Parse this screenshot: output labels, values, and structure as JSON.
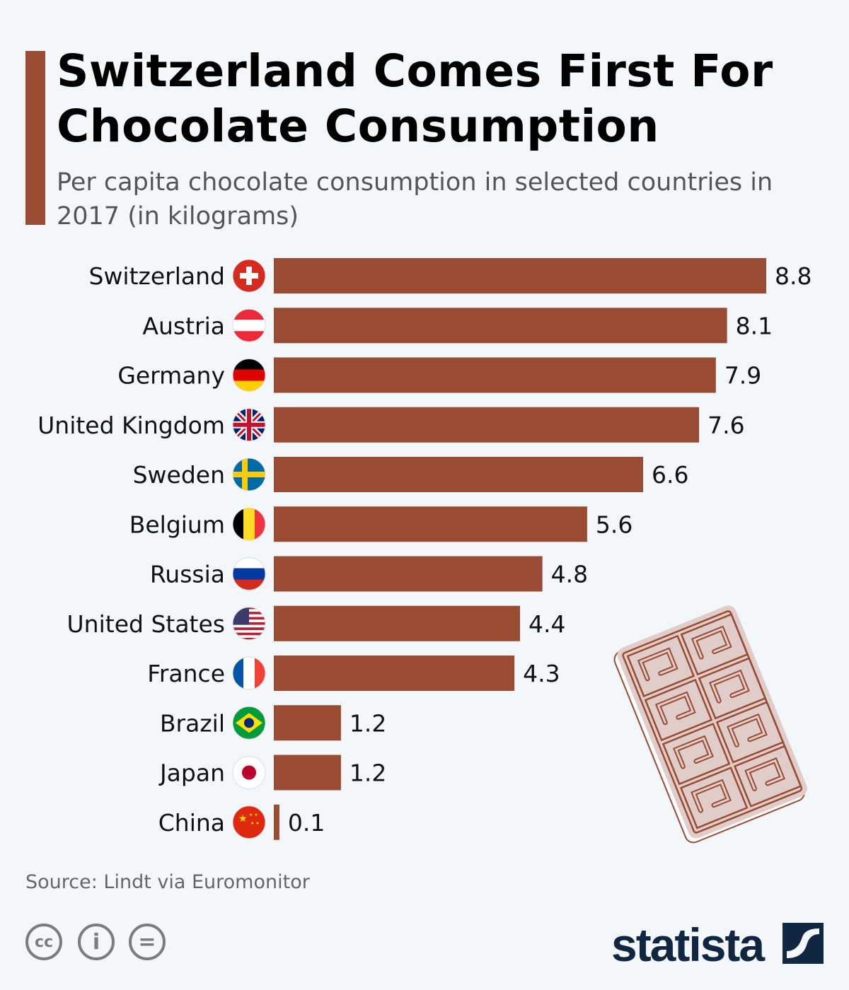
{
  "title": "Switzerland Comes First For Chocolate Consumption",
  "subtitle": "Per capita chocolate consumption in selected countries in 2017 (in kilograms)",
  "source": "Source: Lindt via Euromonitor",
  "brand": "statista",
  "license_icons": [
    "cc-icon",
    "attribution-icon",
    "no-derivatives-icon"
  ],
  "colors": {
    "bar": "#994b33",
    "accent": "#994b33",
    "background": "#f4f7fa",
    "brand": "#0f2741",
    "illustration": "#e0cdca"
  },
  "chart_data": {
    "type": "bar",
    "orientation": "horizontal",
    "categories": [
      "Switzerland",
      "Austria",
      "Germany",
      "United Kingdom",
      "Sweden",
      "Belgium",
      "Russia",
      "United States",
      "France",
      "Brazil",
      "Japan",
      "China"
    ],
    "values": [
      8.8,
      8.1,
      7.9,
      7.6,
      6.6,
      5.6,
      4.8,
      4.4,
      4.3,
      1.2,
      1.2,
      0.1
    ],
    "flags": [
      "ch",
      "at",
      "de",
      "gb",
      "se",
      "be",
      "ru",
      "us",
      "fr",
      "br",
      "jp",
      "cn"
    ],
    "xlim": [
      0,
      8.8
    ],
    "grid": false,
    "data_labels": true
  }
}
